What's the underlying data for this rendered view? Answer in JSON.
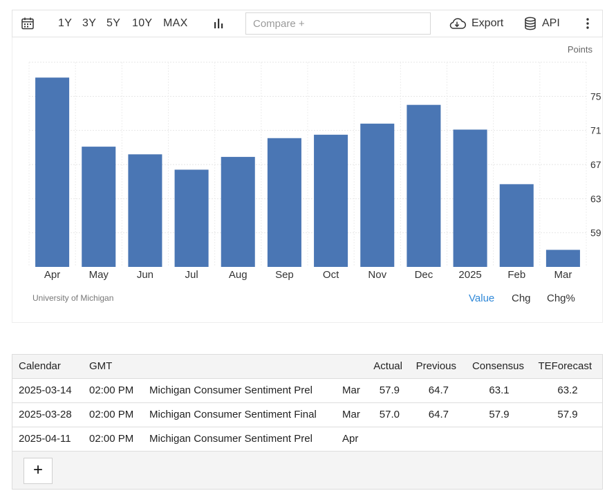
{
  "toolbar": {
    "ranges": [
      "1Y",
      "3Y",
      "5Y",
      "10Y",
      "MAX"
    ],
    "compare_placeholder": "Compare +",
    "export_label": "Export",
    "api_label": "API",
    "icons": [
      "calendar-icon",
      "bar-chart-icon",
      "cloud-download-icon",
      "database-icon",
      "more-vertical-icon"
    ]
  },
  "chart_data": {
    "type": "bar",
    "categories": [
      "Apr",
      "May",
      "Jun",
      "Jul",
      "Aug",
      "Sep",
      "Oct",
      "Nov",
      "Dec",
      "2025",
      "Feb",
      "Mar"
    ],
    "values": [
      77.2,
      69.1,
      68.2,
      66.4,
      67.9,
      70.1,
      70.5,
      71.8,
      74.0,
      71.1,
      64.7,
      57.0
    ],
    "ylabel": "Points",
    "yticks": [
      59,
      63,
      67,
      71,
      75
    ],
    "ylim": [
      55,
      79
    ],
    "grid": true,
    "bar_color": "#4a76b4",
    "axis_position": "right"
  },
  "chart": {
    "units_label": "Points",
    "source": "University of Michigan",
    "modes": [
      "Value",
      "Chg",
      "Chg%"
    ],
    "active_mode": "Value",
    "active_color": "#2f88d8"
  },
  "table": {
    "headers": {
      "calendar": "Calendar",
      "gmt": "GMT",
      "actual": "Actual",
      "previous": "Previous",
      "consensus": "Consensus",
      "teforecast": "TEForecast"
    },
    "rows": [
      {
        "date": "2025-03-14",
        "time": "02:00 PM",
        "event": "Michigan Consumer Sentiment Prel",
        "ref": "Mar",
        "actual": "57.9",
        "previous": "64.7",
        "consensus": "63.1",
        "teforecast": "63.2"
      },
      {
        "date": "2025-03-28",
        "time": "02:00 PM",
        "event": "Michigan Consumer Sentiment Final",
        "ref": "Mar",
        "actual": "57.0",
        "previous": "64.7",
        "consensus": "57.9",
        "teforecast": "57.9"
      },
      {
        "date": "2025-04-11",
        "time": "02:00 PM",
        "event": "Michigan Consumer Sentiment Prel",
        "ref": "Apr",
        "actual": "",
        "previous": "",
        "consensus": "",
        "teforecast": ""
      }
    ],
    "add_label": "+"
  }
}
